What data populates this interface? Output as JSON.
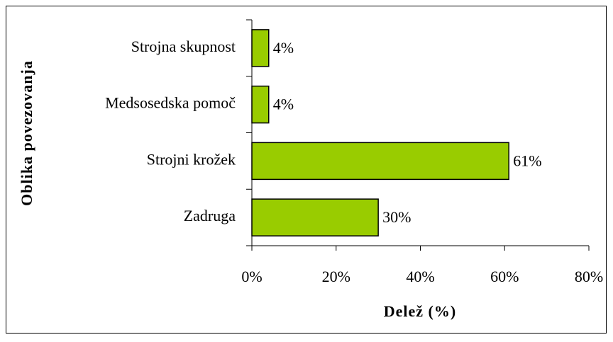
{
  "chart_data": {
    "type": "bar",
    "orientation": "horizontal",
    "categories": [
      "Strojna skupnost",
      "Medsosedska pomoč",
      "Strojni krožek",
      "Zadruga"
    ],
    "values": [
      4,
      4,
      61,
      30
    ],
    "value_labels": [
      "4%",
      "4%",
      "61%",
      "30%"
    ],
    "color": "#99cc00",
    "xlabel": "Delež (%)",
    "ylabel": "Oblika povezovanja",
    "xlim": [
      0,
      80
    ],
    "xticks": [
      {
        "value": 0,
        "label": "0%"
      },
      {
        "value": 20,
        "label": "20%"
      },
      {
        "value": 40,
        "label": "40%"
      },
      {
        "value": 60,
        "label": "60%"
      },
      {
        "value": 80,
        "label": "80%"
      }
    ],
    "grid": false
  }
}
